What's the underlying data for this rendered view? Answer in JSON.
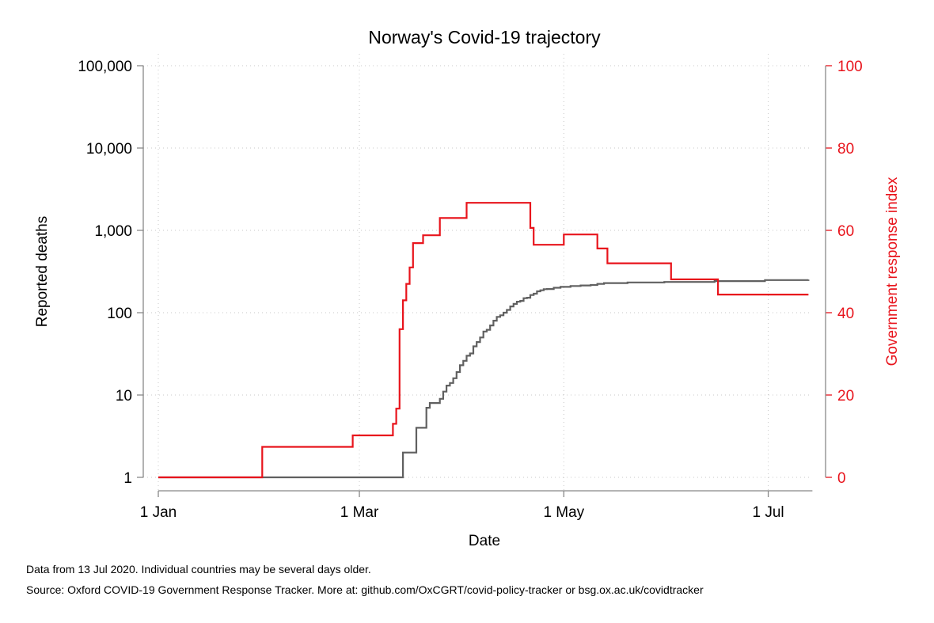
{
  "chart_data": {
    "type": "line",
    "title": "Norway's Covid-19 trajectory",
    "xlabel": "Date",
    "ylabel": "Reported deaths",
    "y2label": "Government response index",
    "x_ticks": [
      "1 Jan",
      "1 Mar",
      "1 May",
      "1 Jul"
    ],
    "y_ticks": [
      "1",
      "10",
      "100",
      "1,000",
      "10,000",
      "100,000"
    ],
    "y2_ticks": [
      "0",
      "20",
      "40",
      "60",
      "80",
      "100"
    ],
    "y_scale": "log",
    "ylim": [
      1,
      100000
    ],
    "y2lim": [
      0,
      100
    ],
    "xlim": [
      "2020-01-01",
      "2020-07-13"
    ],
    "grid": true,
    "colors": {
      "deaths": "#606060",
      "response": "#e8141c"
    },
    "series": [
      {
        "axis": "left",
        "points": [
          [
            "2020-01-01",
            1
          ],
          [
            "2020-03-13",
            1
          ],
          [
            "2020-03-14",
            2
          ],
          [
            "2020-03-17",
            2
          ],
          [
            "2020-03-18",
            4
          ],
          [
            "2020-03-20",
            4
          ],
          [
            "2020-03-21",
            7
          ],
          [
            "2020-03-22",
            8
          ],
          [
            "2020-03-24",
            8
          ],
          [
            "2020-03-25",
            9
          ],
          [
            "2020-03-26",
            11
          ],
          [
            "2020-03-27",
            13
          ],
          [
            "2020-03-28",
            14
          ],
          [
            "2020-03-29",
            16
          ],
          [
            "2020-03-30",
            19
          ],
          [
            "2020-03-31",
            23
          ],
          [
            "2020-04-01",
            26
          ],
          [
            "2020-04-02",
            30
          ],
          [
            "2020-04-03",
            32
          ],
          [
            "2020-04-04",
            39
          ],
          [
            "2020-04-05",
            44
          ],
          [
            "2020-04-06",
            50
          ],
          [
            "2020-04-07",
            59
          ],
          [
            "2020-04-08",
            62
          ],
          [
            "2020-04-09",
            70
          ],
          [
            "2020-04-10",
            80
          ],
          [
            "2020-04-11",
            89
          ],
          [
            "2020-04-12",
            93
          ],
          [
            "2020-04-13",
            100
          ],
          [
            "2020-04-14",
            108
          ],
          [
            "2020-04-15",
            119
          ],
          [
            "2020-04-16",
            128
          ],
          [
            "2020-04-17",
            136
          ],
          [
            "2020-04-18",
            139
          ],
          [
            "2020-04-19",
            150
          ],
          [
            "2020-04-20",
            152
          ],
          [
            "2020-04-21",
            164
          ],
          [
            "2020-04-22",
            170
          ],
          [
            "2020-04-23",
            182
          ],
          [
            "2020-04-24",
            187
          ],
          [
            "2020-04-25",
            193
          ],
          [
            "2020-04-26",
            194
          ],
          [
            "2020-04-28",
            201
          ],
          [
            "2020-04-30",
            206
          ],
          [
            "2020-05-03",
            211
          ],
          [
            "2020-05-06",
            214
          ],
          [
            "2020-05-09",
            217
          ],
          [
            "2020-05-11",
            224
          ],
          [
            "2020-05-13",
            229
          ],
          [
            "2020-05-20",
            233
          ],
          [
            "2020-05-31",
            236
          ],
          [
            "2020-06-15",
            242
          ],
          [
            "2020-06-30",
            249
          ],
          [
            "2020-07-13",
            252
          ]
        ]
      },
      {
        "axis": "right",
        "points": [
          [
            "2020-01-01",
            0
          ],
          [
            "2020-01-31",
            0
          ],
          [
            "2020-02-01",
            7.4
          ],
          [
            "2020-02-27",
            7.4
          ],
          [
            "2020-02-28",
            10.2
          ],
          [
            "2020-03-10",
            10.2
          ],
          [
            "2020-03-11",
            13
          ],
          [
            "2020-03-12",
            16.7
          ],
          [
            "2020-03-13",
            36
          ],
          [
            "2020-03-14",
            43
          ],
          [
            "2020-03-15",
            47
          ],
          [
            "2020-03-16",
            51
          ],
          [
            "2020-03-17",
            56.9
          ],
          [
            "2020-03-19",
            56.9
          ],
          [
            "2020-03-20",
            58.8
          ],
          [
            "2020-03-24",
            58.8
          ],
          [
            "2020-03-25",
            63
          ],
          [
            "2020-04-01",
            63
          ],
          [
            "2020-04-02",
            66.7
          ],
          [
            "2020-04-20",
            66.7
          ],
          [
            "2020-04-21",
            60.6
          ],
          [
            "2020-04-22",
            56.5
          ],
          [
            "2020-04-30",
            56.5
          ],
          [
            "2020-05-01",
            59
          ],
          [
            "2020-05-10",
            59
          ],
          [
            "2020-05-11",
            55.6
          ],
          [
            "2020-05-13",
            55.6
          ],
          [
            "2020-05-14",
            52
          ],
          [
            "2020-06-01",
            52
          ],
          [
            "2020-06-02",
            48.1
          ],
          [
            "2020-06-15",
            48.1
          ],
          [
            "2020-06-16",
            44.4
          ],
          [
            "2020-07-13",
            44.4
          ]
        ]
      }
    ]
  },
  "notes": [
    "Data from 13 Jul 2020. Individual countries may be several days older.",
    "Source: Oxford COVID-19 Government Response Tracker. More at: github.com/OxCGRT/covid-policy-tracker or bsg.ox.ac.uk/covidtracker"
  ]
}
